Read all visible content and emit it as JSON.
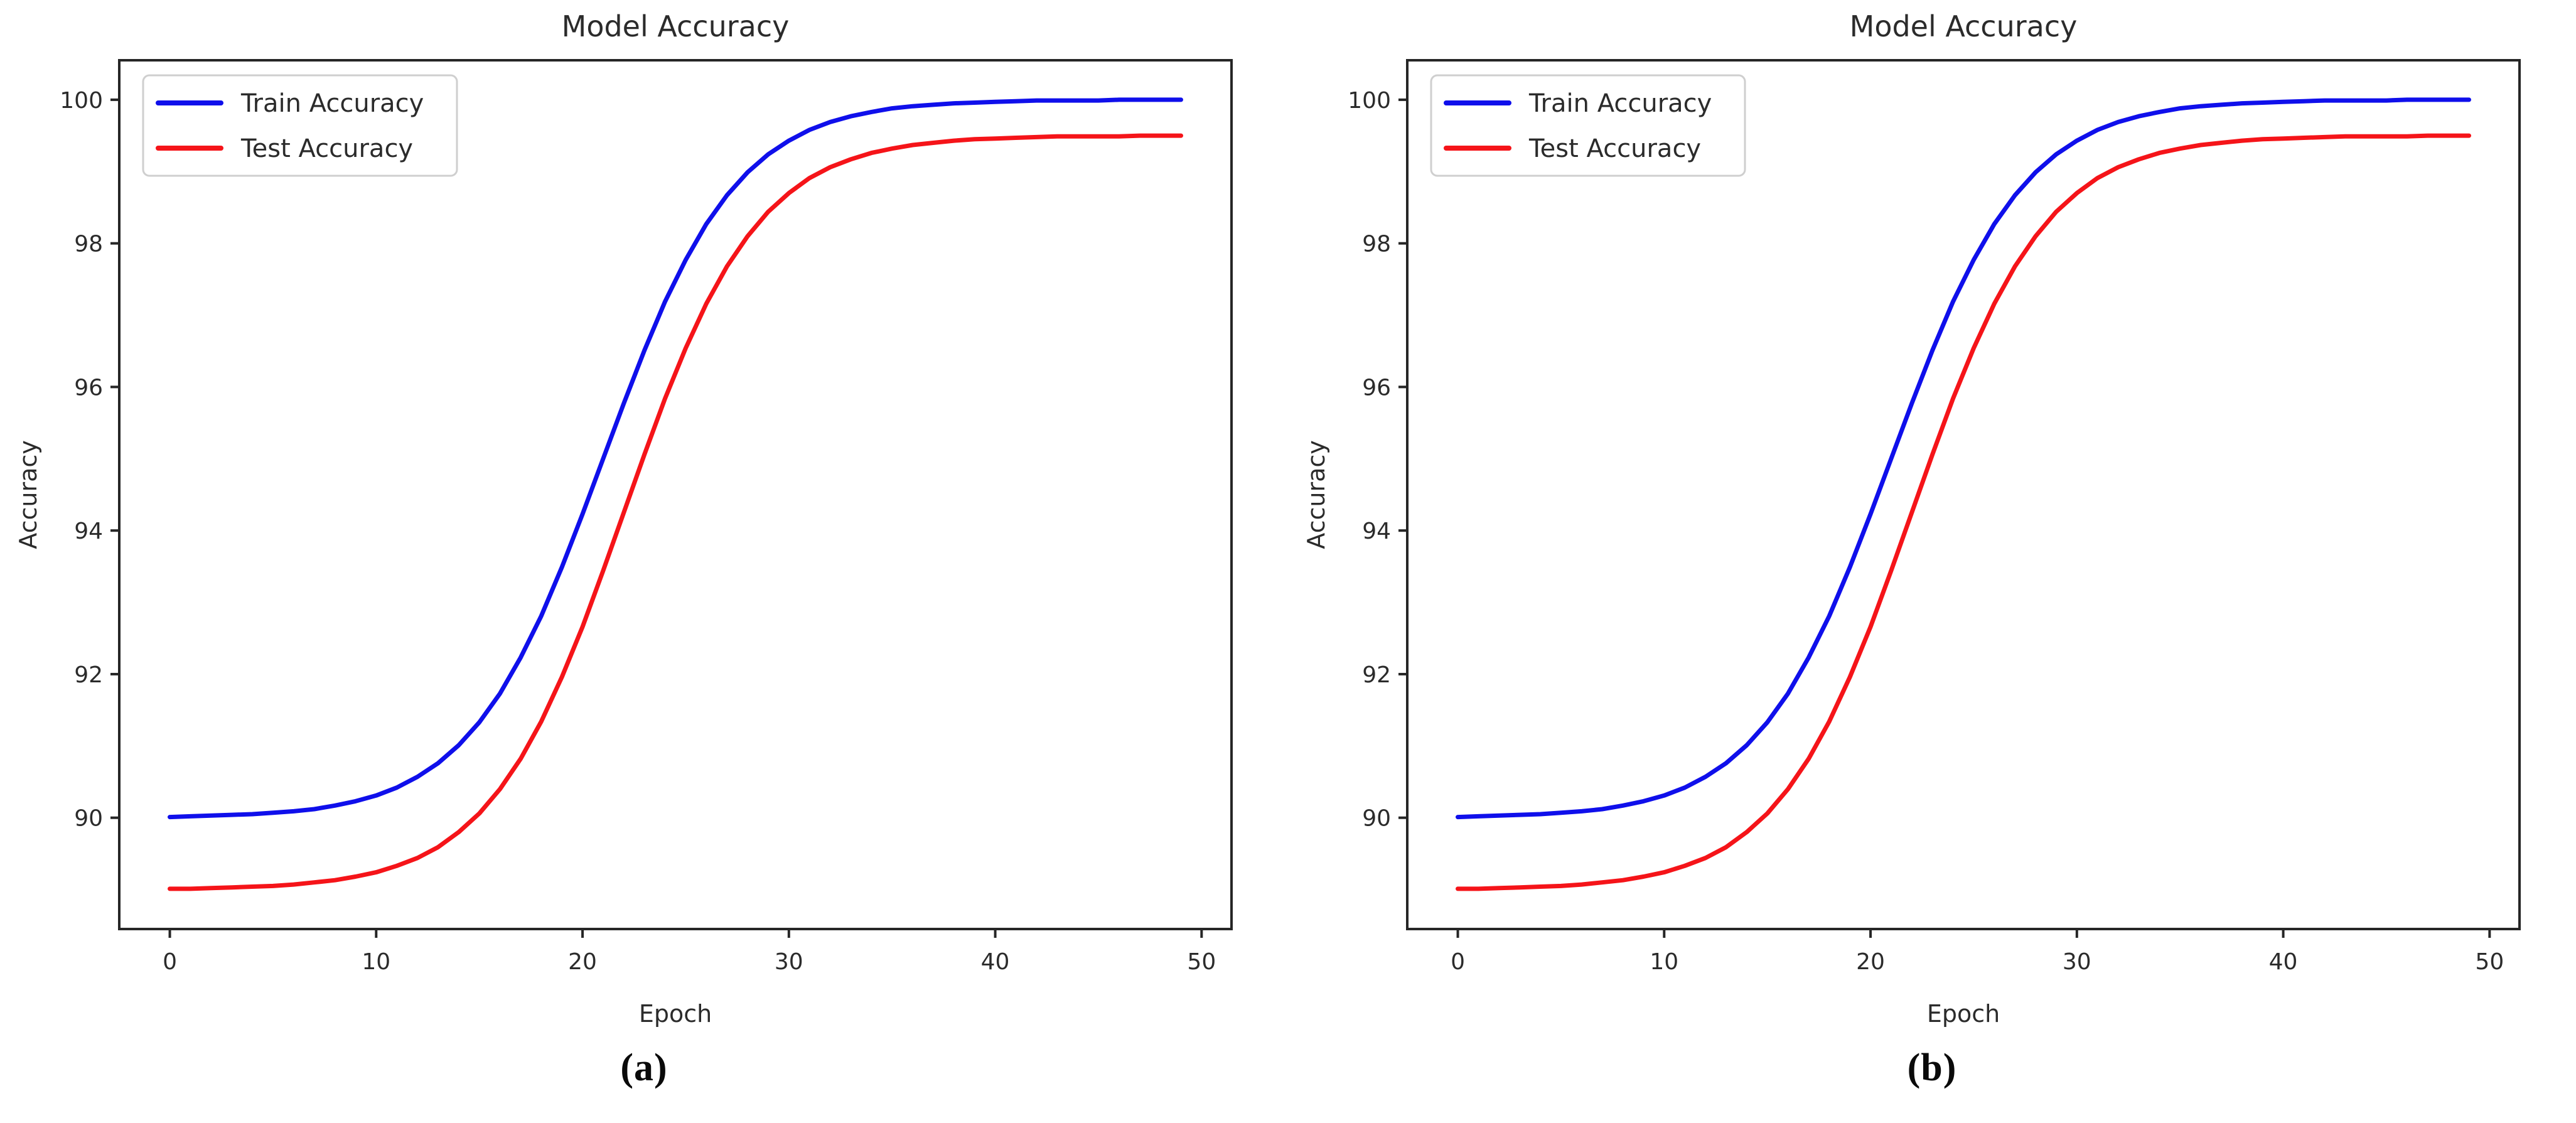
{
  "figure": {
    "background": "#ffffff",
    "text_color": "#2b2b2b",
    "axis_color": "#262626",
    "legend_border_color": "#cfcfcf",
    "legend_fill": "#ffffff",
    "panels": [
      {
        "caption": "(a)"
      },
      {
        "caption": "(b)"
      }
    ]
  },
  "chart_data": [
    {
      "type": "line",
      "title": "Model Accuracy",
      "xlabel": "Epoch",
      "ylabel": "Accuracy",
      "xlim": [
        -2.45,
        51.45
      ],
      "ylim": [
        88.45,
        100.55
      ],
      "xticks": [
        0,
        10,
        20,
        30,
        40,
        50
      ],
      "yticks": [
        90,
        92,
        94,
        96,
        98,
        100
      ],
      "grid": false,
      "legend_position": "upper left",
      "x": [
        0,
        1,
        2,
        3,
        4,
        5,
        6,
        7,
        8,
        9,
        10,
        11,
        12,
        13,
        14,
        15,
        16,
        17,
        18,
        19,
        20,
        21,
        22,
        23,
        24,
        25,
        26,
        27,
        28,
        29,
        30,
        31,
        32,
        33,
        34,
        35,
        36,
        37,
        38,
        39,
        40,
        41,
        42,
        43,
        44,
        45,
        46,
        47,
        48,
        49
      ],
      "series": [
        {
          "name": "Train Accuracy",
          "color": "#0f0feb",
          "values": [
            90.01,
            90.02,
            90.03,
            90.04,
            90.05,
            90.07,
            90.09,
            90.12,
            90.17,
            90.23,
            90.31,
            90.42,
            90.57,
            90.76,
            91.01,
            91.33,
            91.73,
            92.23,
            92.81,
            93.49,
            94.23,
            95.0,
            95.77,
            96.51,
            97.19,
            97.77,
            98.27,
            98.67,
            98.99,
            99.24,
            99.43,
            99.58,
            99.69,
            99.77,
            99.83,
            99.88,
            99.91,
            99.93,
            99.95,
            99.96,
            99.97,
            99.98,
            99.99,
            99.99,
            99.99,
            99.99,
            100.0,
            100.0,
            100.0,
            100.0
          ]
        },
        {
          "name": "Test Accuracy",
          "color": "#f51419",
          "values": [
            89.01,
            89.01,
            89.02,
            89.03,
            89.04,
            89.05,
            89.07,
            89.1,
            89.13,
            89.18,
            89.24,
            89.33,
            89.44,
            89.59,
            89.8,
            90.06,
            90.4,
            90.82,
            91.34,
            91.96,
            92.66,
            93.44,
            94.25,
            95.06,
            95.84,
            96.54,
            97.16,
            97.68,
            98.1,
            98.44,
            98.7,
            98.91,
            99.06,
            99.17,
            99.26,
            99.32,
            99.37,
            99.4,
            99.43,
            99.45,
            99.46,
            99.47,
            99.48,
            99.49,
            99.49,
            99.49,
            99.49,
            99.5,
            99.5,
            99.5
          ]
        }
      ]
    },
    {
      "type": "line",
      "title": "Model Accuracy",
      "xlabel": "Epoch",
      "ylabel": "Accuracy",
      "xlim": [
        -2.45,
        51.45
      ],
      "ylim": [
        88.45,
        100.55
      ],
      "xticks": [
        0,
        10,
        20,
        30,
        40,
        50
      ],
      "yticks": [
        90,
        92,
        94,
        96,
        98,
        100
      ],
      "grid": false,
      "legend_position": "upper left",
      "x": [
        0,
        1,
        2,
        3,
        4,
        5,
        6,
        7,
        8,
        9,
        10,
        11,
        12,
        13,
        14,
        15,
        16,
        17,
        18,
        19,
        20,
        21,
        22,
        23,
        24,
        25,
        26,
        27,
        28,
        29,
        30,
        31,
        32,
        33,
        34,
        35,
        36,
        37,
        38,
        39,
        40,
        41,
        42,
        43,
        44,
        45,
        46,
        47,
        48,
        49
      ],
      "series": [
        {
          "name": "Train Accuracy",
          "color": "#0f0feb",
          "values": [
            90.01,
            90.02,
            90.03,
            90.04,
            90.05,
            90.07,
            90.09,
            90.12,
            90.17,
            90.23,
            90.31,
            90.42,
            90.57,
            90.76,
            91.01,
            91.33,
            91.73,
            92.23,
            92.81,
            93.49,
            94.23,
            95.0,
            95.77,
            96.51,
            97.19,
            97.77,
            98.27,
            98.67,
            98.99,
            99.24,
            99.43,
            99.58,
            99.69,
            99.77,
            99.83,
            99.88,
            99.91,
            99.93,
            99.95,
            99.96,
            99.97,
            99.98,
            99.99,
            99.99,
            99.99,
            99.99,
            100.0,
            100.0,
            100.0,
            100.0
          ]
        },
        {
          "name": "Test Accuracy",
          "color": "#f51419",
          "values": [
            89.01,
            89.01,
            89.02,
            89.03,
            89.04,
            89.05,
            89.07,
            89.1,
            89.13,
            89.18,
            89.24,
            89.33,
            89.44,
            89.59,
            89.8,
            90.06,
            90.4,
            90.82,
            91.34,
            91.96,
            92.66,
            93.44,
            94.25,
            95.06,
            95.84,
            96.54,
            97.16,
            97.68,
            98.1,
            98.44,
            98.7,
            98.91,
            99.06,
            99.17,
            99.26,
            99.32,
            99.37,
            99.4,
            99.43,
            99.45,
            99.46,
            99.47,
            99.48,
            99.49,
            99.49,
            99.49,
            99.49,
            99.5,
            99.5,
            99.5
          ]
        }
      ]
    }
  ]
}
